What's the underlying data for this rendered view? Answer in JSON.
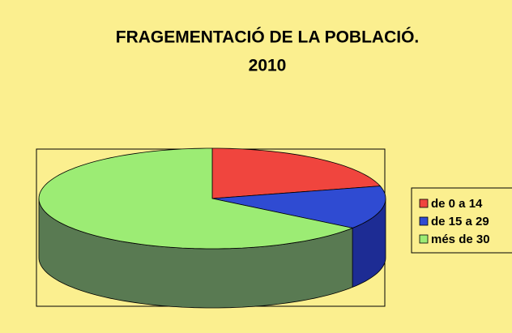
{
  "chart_data": {
    "type": "pie",
    "title": [
      "FRAGEMENTACIÓ DE LA POBLACIÓ.",
      "2010"
    ],
    "categories": [
      "de 0 a 14",
      "de 15 a 29",
      "més de 30"
    ],
    "values": [
      21,
      14,
      65
    ],
    "colors": [
      "#f0453e",
      "#2f4bd2",
      "#9cec74"
    ],
    "side_colors": [
      "#a02a26",
      "#1d2c94",
      "#597a52"
    ],
    "legend": "right"
  }
}
